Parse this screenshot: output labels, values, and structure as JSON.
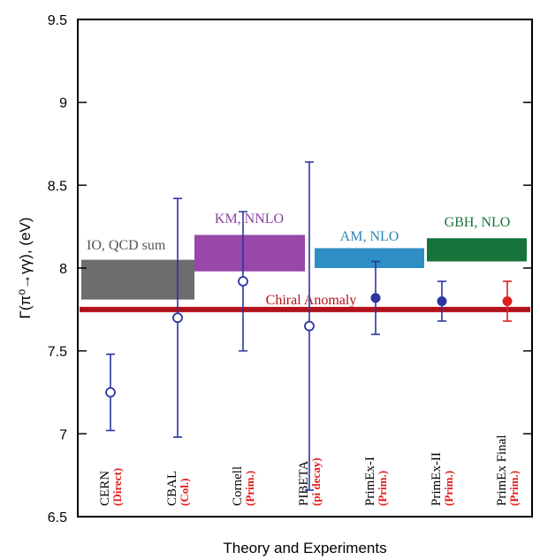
{
  "chart_data": {
    "type": "scatter",
    "title": "",
    "xlabel": "Theory and Experiments",
    "ylabel": "Γ(π⁰→γγ), (eV)",
    "ylim": [
      6.5,
      9.5
    ],
    "yticks": [
      "6.5",
      "7",
      "7.5",
      "8",
      "8.5",
      "9",
      "9.5"
    ],
    "grid": false,
    "reference_line": {
      "name": "Chiral Anomaly",
      "value": 7.75,
      "color": "#b3121b"
    },
    "theory_bands": [
      {
        "name": "IO, QCD sum",
        "low": 7.81,
        "high": 8.05,
        "color": "#6d6d6d",
        "label_color": "#555555"
      },
      {
        "name": "KM, NNLO",
        "low": 7.98,
        "high": 8.2,
        "color": "#9848a8",
        "label_color": "#8e3fa0"
      },
      {
        "name": "AM, NLO",
        "low": 8.0,
        "high": 8.12,
        "color": "#2e8fc4",
        "label_color": "#2a86b8"
      },
      {
        "name": "GBH, NLO",
        "low": 8.04,
        "high": 8.18,
        "color": "#16743a",
        "label_color": "#16743a"
      }
    ],
    "points": [
      {
        "name": "CERN",
        "type": "(Direct)",
        "value": 7.25,
        "err_low": 0.23,
        "err_high": 0.23,
        "marker": "open",
        "color": "#2c35a0"
      },
      {
        "name": "CBAL",
        "type": "(Col.)",
        "value": 7.7,
        "err_low": 0.72,
        "err_high": 0.72,
        "marker": "open",
        "color": "#2c35a0"
      },
      {
        "name": "Cornell",
        "type": "(Prim.)",
        "value": 7.92,
        "err_low": 0.42,
        "err_high": 0.42,
        "marker": "open",
        "color": "#2c35a0"
      },
      {
        "name": "PIBETA",
        "type": "(pi decay)",
        "value": 7.65,
        "err_low": 0.99,
        "err_high": 0.99,
        "marker": "open",
        "color": "#2c35a0"
      },
      {
        "name": "PrimEx-I",
        "type": "(Prim.)",
        "value": 7.82,
        "err_low": 0.22,
        "err_high": 0.22,
        "marker": "filled",
        "color": "#2c35a0"
      },
      {
        "name": "PrimEx-II",
        "type": "(Prim.)",
        "value": 7.8,
        "err_low": 0.12,
        "err_high": 0.12,
        "marker": "filled",
        "color": "#2c35a0"
      },
      {
        "name": "PrimEx Final",
        "type": "(Prim.)",
        "value": 7.8,
        "err_low": 0.12,
        "err_high": 0.12,
        "marker": "filled",
        "color": "#e0201e"
      }
    ]
  }
}
